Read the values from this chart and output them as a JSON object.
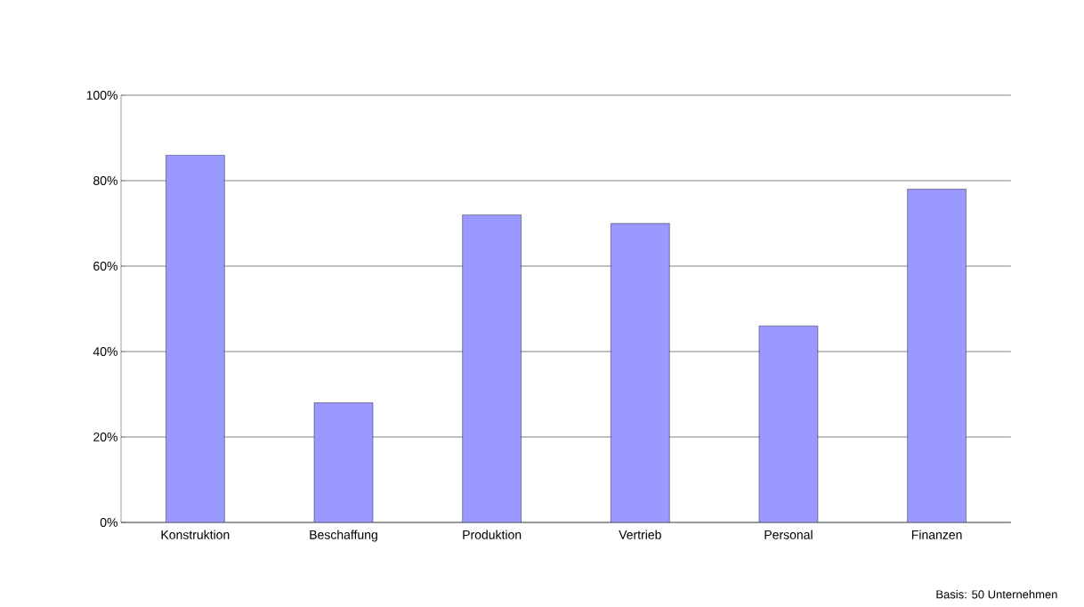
{
  "chart_data": {
    "type": "bar",
    "categories": [
      "Konstruktion",
      "Beschaffung",
      "Produktion",
      "Vertrieb",
      "Personal",
      "Finanzen"
    ],
    "values": [
      86,
      28,
      72,
      70,
      46,
      78
    ],
    "color": "#9999ff",
    "ylim": [
      0,
      100
    ],
    "yticks": [
      {
        "value": 0,
        "label": "0%"
      },
      {
        "value": 20,
        "label": "20%"
      },
      {
        "value": 40,
        "label": "40%"
      },
      {
        "value": 60,
        "label": "60%"
      },
      {
        "value": 80,
        "label": "80%"
      },
      {
        "value": 100,
        "label": "100%"
      }
    ],
    "grid": "y",
    "annotations": [
      "Basis: 50 Unternehmen"
    ]
  }
}
